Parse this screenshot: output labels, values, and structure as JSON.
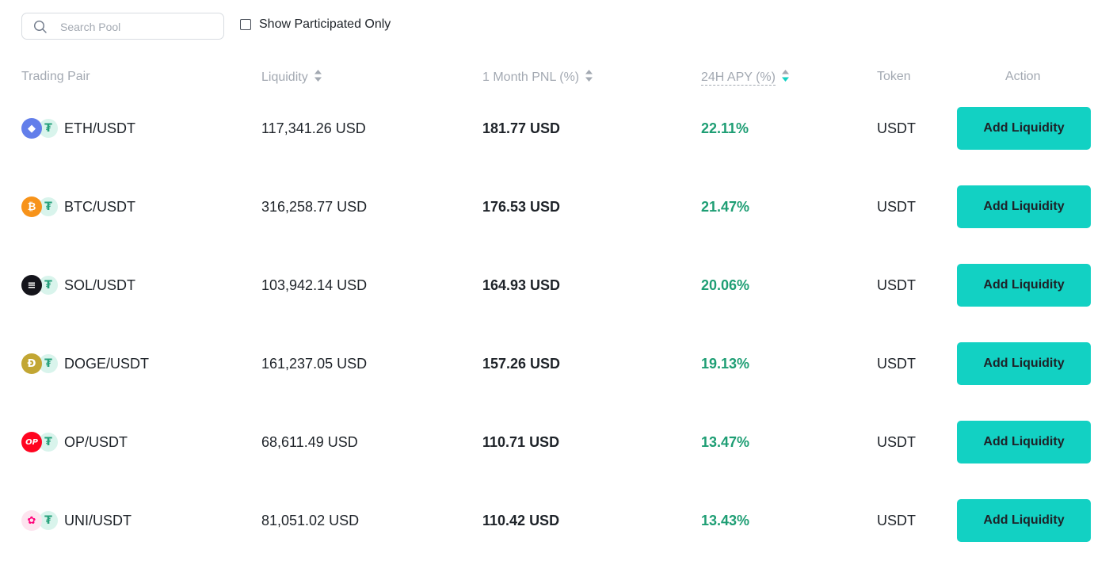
{
  "search": {
    "placeholder": "Search Pool",
    "value": ""
  },
  "filter": {
    "participated_label": "Show Participated Only",
    "checked": false
  },
  "columns": {
    "pair": "Trading Pair",
    "liquidity": "Liquidity",
    "pnl": "1 Month PNL (%)",
    "apy": "24H APY (%)",
    "token": "Token",
    "action": "Action"
  },
  "colors": {
    "accent": "#12d1c3",
    "positive": "#1e9e74",
    "header_text": "#a3a9b2",
    "active_sort": "#12d1c3"
  },
  "pools": [
    {
      "pair": "ETH/USDT",
      "base_icon": "eth-icon",
      "base_glyph": "◆",
      "base_color": "#627eea",
      "liquidity": "117,341.26 USD",
      "pnl": "181.77 USD",
      "apy": "22.11%",
      "token": "USDT",
      "action": "Add Liquidity"
    },
    {
      "pair": "BTC/USDT",
      "base_icon": "btc-icon",
      "base_glyph": "₿",
      "base_color": "#f7931a",
      "liquidity": "316,258.77 USD",
      "pnl": "176.53 USD",
      "apy": "21.47%",
      "token": "USDT",
      "action": "Add Liquidity"
    },
    {
      "pair": "SOL/USDT",
      "base_icon": "sol-icon",
      "base_glyph": "≡",
      "base_color": "#14141b",
      "liquidity": "103,942.14 USD",
      "pnl": "164.93 USD",
      "apy": "20.06%",
      "token": "USDT",
      "action": "Add Liquidity"
    },
    {
      "pair": "DOGE/USDT",
      "base_icon": "doge-icon",
      "base_glyph": "Ð",
      "base_color": "#c2a633",
      "liquidity": "161,237.05 USD",
      "pnl": "157.26 USD",
      "apy": "19.13%",
      "token": "USDT",
      "action": "Add Liquidity"
    },
    {
      "pair": "OP/USDT",
      "base_icon": "op-icon",
      "base_glyph": "OP",
      "base_color": "#ff0420",
      "liquidity": "68,611.49 USD",
      "pnl": "110.71 USD",
      "apy": "13.47%",
      "token": "USDT",
      "action": "Add Liquidity"
    },
    {
      "pair": "UNI/USDT",
      "base_icon": "uni-icon",
      "base_glyph": "✿",
      "base_color": "#fde4ef",
      "liquidity": "81,051.02 USD",
      "pnl": "110.42 USD",
      "apy": "13.43%",
      "token": "USDT",
      "action": "Add Liquidity"
    }
  ],
  "quote_icon": {
    "name": "usdt-icon",
    "glyph": "₮"
  }
}
